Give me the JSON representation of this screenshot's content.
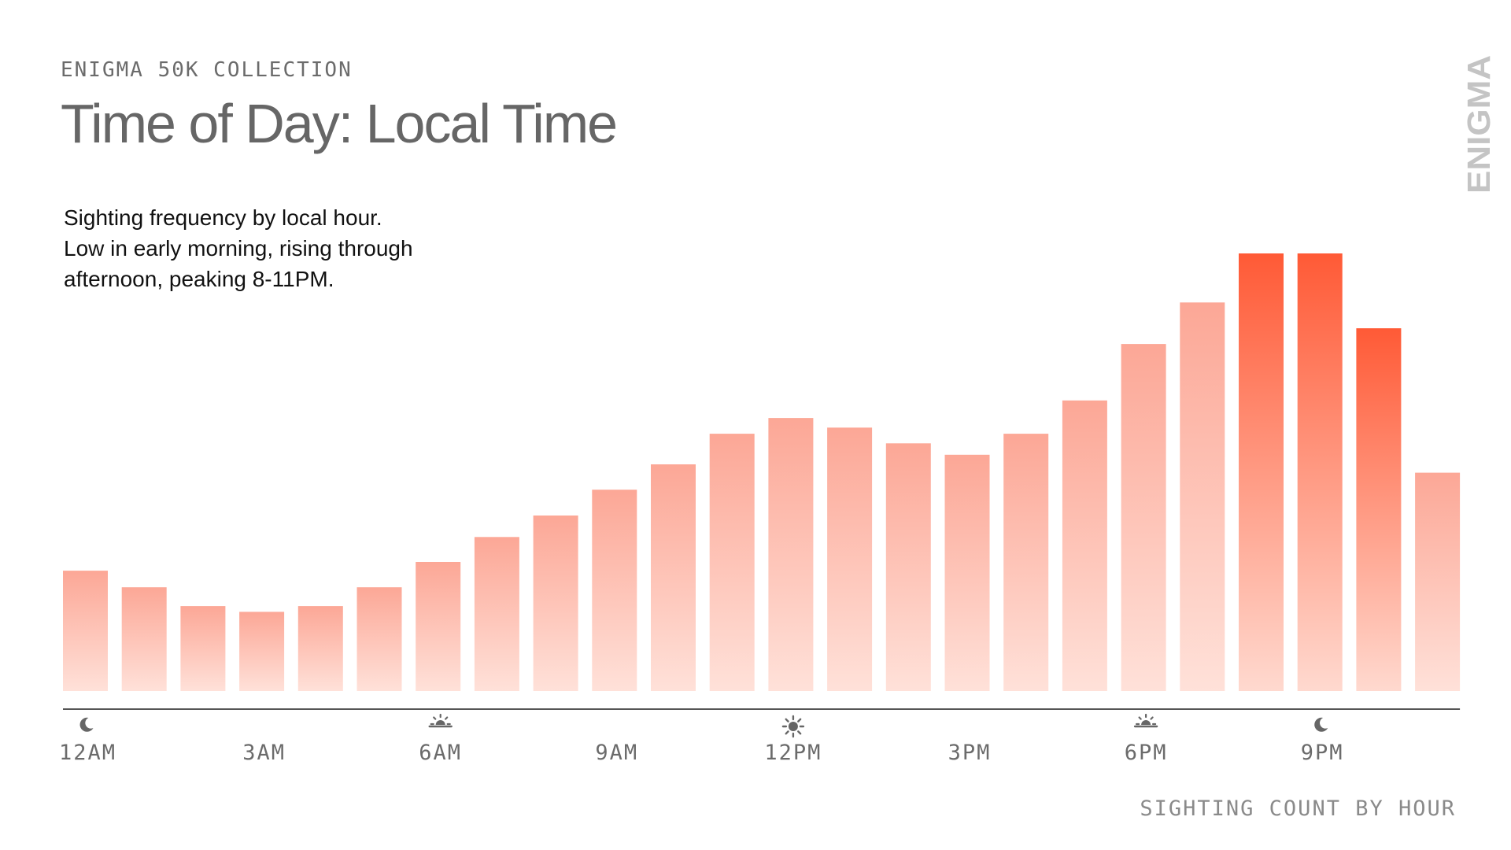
{
  "header": {
    "eyebrow": "ENIGMA 50K COLLECTION",
    "title": "Time of Day: Local Time"
  },
  "description": {
    "lines": [
      "Sighting frequency by local hour.",
      "Low in early morning, rising through",
      "afternoon, peaking 8-11PM."
    ]
  },
  "brand": {
    "logo_text": "ENIGMA"
  },
  "footer": {
    "label": "SIGHTING COUNT BY HOUR"
  },
  "colors": {
    "peak_top": "#ff5a36",
    "peak_bottom": "#ffd9cf",
    "normal_top": "#fca796",
    "normal_bottom": "#ffe1d9",
    "axis": "#555555",
    "tick_text": "#6b6b6b",
    "icon": "#666666"
  },
  "chart_data": {
    "type": "bar",
    "categories": [
      "0",
      "1",
      "2",
      "3",
      "4",
      "5",
      "6",
      "7",
      "8",
      "9",
      "10",
      "11",
      "12",
      "13",
      "14",
      "15",
      "16",
      "17",
      "18",
      "19",
      "20",
      "21",
      "22",
      "23"
    ],
    "values": [
      27.5,
      23.7,
      19.4,
      18.1,
      19.4,
      23.7,
      29.5,
      35.2,
      40.1,
      46.0,
      51.8,
      58.8,
      62.4,
      60.2,
      56.6,
      54.0,
      58.8,
      66.4,
      79.3,
      88.8,
      100,
      100,
      82.9,
      49.9
    ],
    "highlight_indices": [
      20,
      21,
      22
    ],
    "title": "Time of Day: Local Time",
    "xlabel": "",
    "ylabel": "",
    "ylim": [
      0,
      100
    ],
    "grid": false,
    "legend": "none",
    "tick_labels": [
      {
        "index": 0,
        "label": "12AM",
        "icon": "moon-icon"
      },
      {
        "index": 3,
        "label": "3AM",
        "icon": ""
      },
      {
        "index": 6,
        "label": "6AM",
        "icon": "sunrise-icon"
      },
      {
        "index": 9,
        "label": "9AM",
        "icon": ""
      },
      {
        "index": 12,
        "label": "12PM",
        "icon": "sun-icon"
      },
      {
        "index": 15,
        "label": "3PM",
        "icon": ""
      },
      {
        "index": 18,
        "label": "6PM",
        "icon": "sunset-icon"
      },
      {
        "index": 21,
        "label": "9PM",
        "icon": "moon-icon"
      }
    ]
  }
}
